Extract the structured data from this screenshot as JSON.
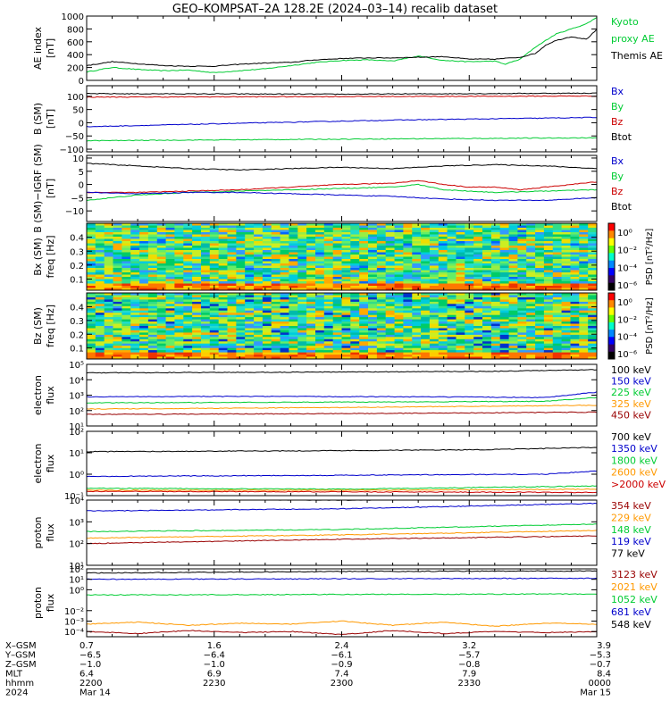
{
  "title": "GEO–KOMPSAT–2A 128.2E (2024–03–14) recalib dataset",
  "colors": {
    "black": "#000000",
    "blue": "#0000cc",
    "green": "#00cc33",
    "red": "#cc0000",
    "orange": "#ff9900",
    "darkred": "#990000"
  },
  "chart_data": [
    {
      "id": "ae",
      "type": "line",
      "ylabel": [
        "AE index",
        "[nT]"
      ],
      "ylim": [
        0,
        1000
      ],
      "ytick_values": [
        0,
        200,
        400,
        600,
        800,
        1000
      ],
      "ytick_labels": [
        "0",
        "200",
        "400",
        "600",
        "800",
        "1000"
      ],
      "legend": [
        {
          "text": "Kyoto",
          "color": "green"
        },
        {
          "text": "proxy AE",
          "color": "green"
        },
        {
          "text": "Themis AE",
          "color": "black"
        }
      ],
      "series": [
        {
          "name": "Kyoto proxy AE",
          "color": "green",
          "x": [
            0,
            0.05,
            0.1,
            0.15,
            0.2,
            0.25,
            0.3,
            0.35,
            0.4,
            0.45,
            0.5,
            0.55,
            0.6,
            0.65,
            0.7,
            0.75,
            0.8,
            0.82,
            0.85,
            0.88,
            0.9,
            0.92,
            0.95,
            0.98,
            1.0
          ],
          "y": [
            130,
            200,
            170,
            150,
            160,
            120,
            150,
            180,
            230,
            280,
            310,
            320,
            300,
            380,
            310,
            290,
            300,
            250,
            330,
            520,
            620,
            720,
            800,
            880,
            980
          ]
        },
        {
          "name": "Themis AE",
          "color": "black",
          "x": [
            0,
            0.05,
            0.1,
            0.15,
            0.2,
            0.25,
            0.3,
            0.35,
            0.4,
            0.45,
            0.5,
            0.55,
            0.6,
            0.65,
            0.7,
            0.75,
            0.8,
            0.85,
            0.88,
            0.9,
            0.92,
            0.95,
            0.98,
            1.0
          ],
          "y": [
            230,
            290,
            260,
            230,
            220,
            220,
            250,
            270,
            280,
            320,
            340,
            350,
            350,
            360,
            370,
            330,
            330,
            360,
            420,
            550,
            620,
            680,
            640,
            790
          ]
        }
      ]
    },
    {
      "id": "bsm",
      "type": "line",
      "ylabel": [
        "B (SM)",
        "[nT]"
      ],
      "ylim": [
        -110,
        140
      ],
      "ytick_values": [
        -100,
        -50,
        0,
        50,
        100
      ],
      "ytick_labels": [
        "−100",
        "−50",
        "0",
        "50",
        "100"
      ],
      "legend": [
        {
          "text": "Bx",
          "color": "blue"
        },
        {
          "text": "By",
          "color": "green"
        },
        {
          "text": "Bz",
          "color": "red"
        },
        {
          "text": "Btot",
          "color": "black"
        }
      ],
      "series": [
        {
          "name": "Btot",
          "color": "black",
          "x": [
            0,
            0.5,
            1
          ],
          "y": [
            110,
            108,
            112
          ]
        },
        {
          "name": "Bz",
          "color": "red",
          "x": [
            0,
            0.5,
            1
          ],
          "y": [
            97,
            99,
            101
          ]
        },
        {
          "name": "Bx",
          "color": "blue",
          "x": [
            0,
            0.3,
            0.6,
            1
          ],
          "y": [
            -15,
            -2,
            10,
            20
          ]
        },
        {
          "name": "By",
          "color": "green",
          "x": [
            0,
            0.5,
            1
          ],
          "y": [
            -68,
            -62,
            -57
          ]
        }
      ]
    },
    {
      "id": "bdiff",
      "type": "line",
      "ylabel": [
        "B (SM)−IGRF (SM)",
        "[nT]"
      ],
      "ylim": [
        -14,
        11
      ],
      "ytick_values": [
        -10,
        -5,
        0,
        5,
        10
      ],
      "ytick_labels": [
        "−10",
        "−5",
        "0",
        "5",
        "10"
      ],
      "legend": [
        {
          "text": "Bx",
          "color": "blue"
        },
        {
          "text": "By",
          "color": "green"
        },
        {
          "text": "Bz",
          "color": "red"
        },
        {
          "text": "Btot",
          "color": "black"
        }
      ],
      "series": [
        {
          "name": "Btot",
          "color": "black",
          "x": [
            0,
            0.1,
            0.2,
            0.3,
            0.4,
            0.5,
            0.6,
            0.7,
            0.8,
            0.9,
            1
          ],
          "y": [
            8,
            7,
            6,
            5.5,
            6,
            6.5,
            6,
            7,
            7.5,
            7,
            6
          ]
        },
        {
          "name": "Bz",
          "color": "red",
          "x": [
            0,
            0.1,
            0.2,
            0.3,
            0.4,
            0.5,
            0.6,
            0.65,
            0.7,
            0.75,
            0.8,
            0.85,
            0.9,
            0.95,
            1
          ],
          "y": [
            -3,
            -3,
            -2.5,
            -2,
            -1,
            0,
            0.5,
            1.5,
            0,
            -1,
            -1,
            -2,
            -1,
            0,
            1
          ]
        },
        {
          "name": "By",
          "color": "green",
          "x": [
            0,
            0.1,
            0.2,
            0.3,
            0.4,
            0.5,
            0.6,
            0.65,
            0.7,
            0.8,
            0.9,
            1
          ],
          "y": [
            -6,
            -4,
            -3,
            -2.5,
            -2,
            -1.5,
            -1,
            0,
            -2,
            -3,
            -2.5,
            -2
          ]
        },
        {
          "name": "Bx",
          "color": "blue",
          "x": [
            0,
            0.1,
            0.2,
            0.3,
            0.4,
            0.5,
            0.6,
            0.7,
            0.8,
            0.9,
            1
          ],
          "y": [
            -3,
            -3.5,
            -3,
            -3,
            -3.5,
            -4,
            -4.5,
            -5.5,
            -6,
            -6,
            -5
          ]
        }
      ]
    },
    {
      "id": "bxspec",
      "type": "heatmap",
      "ylabel": [
        "Bx (SM)",
        "freq [Hz]"
      ],
      "ylim": [
        0.02,
        0.5
      ],
      "ytick_values": [
        0.1,
        0.2,
        0.3,
        0.4
      ],
      "ytick_labels": [
        "0.1",
        "0.2",
        "0.3",
        "0.4"
      ],
      "colorbar": {
        "label": "PSD [nT²/Hz]",
        "ticks": [
          "10⁰",
          "10⁻²",
          "10⁻⁴",
          "10⁻⁶"
        ]
      }
    },
    {
      "id": "bzspec",
      "type": "heatmap",
      "ylabel": [
        "Bz (SM)",
        "freq [Hz]"
      ],
      "ylim": [
        0.02,
        0.5
      ],
      "ytick_values": [
        0.1,
        0.2,
        0.3,
        0.4
      ],
      "ytick_labels": [
        "0.1",
        "0.2",
        "0.3",
        "0.4"
      ],
      "colorbar": {
        "label": "PSD [nT²/Hz]",
        "ticks": [
          "10⁰",
          "10⁻²",
          "10⁻⁴",
          "10⁻⁶"
        ]
      }
    },
    {
      "id": "eflux1",
      "type": "line",
      "log": true,
      "ylabel": [
        "electron",
        "flux"
      ],
      "ylim_log": [
        1,
        5
      ],
      "ytick_values": [
        1,
        2,
        3,
        4,
        5
      ],
      "ytick_labels": [
        "10¹",
        "10²",
        "10³",
        "10⁴",
        "10⁵"
      ],
      "legend": [
        {
          "text": "100 keV",
          "color": "black"
        },
        {
          "text": "150 keV",
          "color": "blue"
        },
        {
          "text": "225 keV",
          "color": "green"
        },
        {
          "text": "325 keV",
          "color": "orange"
        },
        {
          "text": "450 keV",
          "color": "darkred"
        }
      ],
      "series": [
        {
          "name": "100 keV",
          "color": "black",
          "x": [
            0,
            0.5,
            0.8,
            1
          ],
          "y": [
            4.45,
            4.5,
            4.55,
            4.65
          ]
        },
        {
          "name": "150 keV",
          "color": "blue",
          "x": [
            0,
            0.3,
            0.6,
            0.9,
            1
          ],
          "y": [
            2.9,
            2.92,
            2.9,
            2.85,
            3.2
          ]
        },
        {
          "name": "225 keV",
          "color": "green",
          "x": [
            0,
            0.5,
            0.9,
            1
          ],
          "y": [
            2.5,
            2.55,
            2.6,
            2.85
          ]
        },
        {
          "name": "325 keV",
          "color": "orange",
          "x": [
            0,
            0.5,
            1
          ],
          "y": [
            2.1,
            2.2,
            2.35
          ]
        },
        {
          "name": "450 keV",
          "color": "darkred",
          "x": [
            0,
            0.5,
            1
          ],
          "y": [
            1.75,
            1.8,
            1.9
          ]
        }
      ]
    },
    {
      "id": "eflux2",
      "type": "line",
      "log": true,
      "ylabel": [
        "electron",
        "flux"
      ],
      "ylim_log": [
        -1,
        2
      ],
      "ytick_values": [
        -1,
        0,
        1,
        2
      ],
      "ytick_labels": [
        "10⁻¹",
        "10⁰",
        "10¹",
        "10²"
      ],
      "legend": [
        {
          "text": "700 keV",
          "color": "black"
        },
        {
          "text": "1350 keV",
          "color": "blue"
        },
        {
          "text": "1800 keV",
          "color": "green"
        },
        {
          "text": "2600 keV",
          "color": "orange"
        },
        {
          "text": ">2000 keV",
          "color": "red"
        }
      ],
      "series": [
        {
          "name": "700 keV",
          "color": "black",
          "x": [
            0,
            0.5,
            0.8,
            1
          ],
          "y": [
            1.05,
            1.1,
            1.15,
            1.25
          ]
        },
        {
          "name": "1350 keV",
          "color": "blue",
          "x": [
            0,
            0.5,
            0.9,
            1
          ],
          "y": [
            -0.1,
            -0.05,
            0,
            0.15
          ]
        },
        {
          "name": "1800 keV",
          "color": "green",
          "x": [
            0,
            0.5,
            1
          ],
          "y": [
            -0.65,
            -0.7,
            -0.55
          ]
        },
        {
          "name": "2600 keV",
          "color": "orange",
          "x": [
            0,
            0.5,
            1
          ],
          "y": [
            -0.75,
            -0.75,
            -0.7
          ]
        },
        {
          "name": ">2000 keV",
          "color": "red",
          "x": [
            0,
            0.5,
            1
          ],
          "y": [
            -0.8,
            -0.82,
            -0.85
          ]
        }
      ]
    },
    {
      "id": "pflux1",
      "type": "line",
      "log": true,
      "ylabel": [
        "proton",
        "flux"
      ],
      "ylim_log": [
        1,
        4
      ],
      "ytick_values": [
        1,
        2,
        3,
        4
      ],
      "ytick_labels": [
        "10¹",
        "10²",
        "10³",
        "10⁴"
      ],
      "legend": [
        {
          "text": "354 keV",
          "color": "darkred"
        },
        {
          "text": "229 keV",
          "color": "orange"
        },
        {
          "text": "148 keV",
          "color": "green"
        },
        {
          "text": "119 keV",
          "color": "blue"
        },
        {
          "text": "77 keV",
          "color": "black"
        }
      ],
      "series": [
        {
          "name": "77 keV",
          "color": "black",
          "x": [
            0,
            0.5,
            1
          ],
          "y": [
            4.05,
            4.0,
            4.05
          ]
        },
        {
          "name": "119 keV",
          "color": "blue",
          "x": [
            0,
            0.5,
            1
          ],
          "y": [
            3.5,
            3.6,
            3.85
          ]
        },
        {
          "name": "148 keV",
          "color": "green",
          "x": [
            0,
            0.5,
            1
          ],
          "y": [
            2.55,
            2.65,
            2.9
          ]
        },
        {
          "name": "229 keV",
          "color": "orange",
          "x": [
            0,
            0.5,
            1
          ],
          "y": [
            2.25,
            2.4,
            2.6
          ]
        },
        {
          "name": "354 keV",
          "color": "darkred",
          "x": [
            0,
            0.5,
            1
          ],
          "y": [
            2.0,
            2.2,
            2.35
          ]
        }
      ]
    },
    {
      "id": "pflux2",
      "type": "line",
      "log": true,
      "ylabel": [
        "proton",
        "flux"
      ],
      "ylim_log": [
        -4.5,
        2
      ],
      "ytick_values": [
        -4,
        -3,
        -2,
        0,
        1,
        2
      ],
      "ytick_labels": [
        "10⁻⁴",
        "10⁻³",
        "10⁻²",
        "10⁰",
        "10¹",
        "10²"
      ],
      "legend": [
        {
          "text": "3123 keV",
          "color": "darkred"
        },
        {
          "text": "2021 keV",
          "color": "orange"
        },
        {
          "text": "1052 keV",
          "color": "green"
        },
        {
          "text": "681 keV",
          "color": "blue"
        },
        {
          "text": "548 keV",
          "color": "black"
        }
      ],
      "series": [
        {
          "name": "548 keV",
          "color": "black",
          "x": [
            0,
            0.5,
            1
          ],
          "y": [
            1.6,
            1.75,
            1.8
          ]
        },
        {
          "name": "681 keV",
          "color": "blue",
          "x": [
            0,
            0.5,
            1
          ],
          "y": [
            1.0,
            1.05,
            1.1
          ]
        },
        {
          "name": "1052 keV",
          "color": "green",
          "x": [
            0,
            0.5,
            1
          ],
          "y": [
            -0.5,
            -0.45,
            -0.4
          ]
        },
        {
          "name": "2021 keV",
          "color": "orange",
          "x": [
            0,
            0.1,
            0.2,
            0.3,
            0.4,
            0.5,
            0.6,
            0.7,
            0.8,
            0.9,
            1
          ],
          "y": [
            -3.3,
            -3.1,
            -3.4,
            -3.2,
            -3.3,
            -3.0,
            -3.4,
            -3.1,
            -3.5,
            -3.2,
            -3.3
          ]
        },
        {
          "name": "3123 keV",
          "color": "darkred",
          "x": [
            0,
            0.1,
            0.2,
            0.3,
            0.4,
            0.5,
            0.6,
            0.7,
            0.8,
            0.9,
            1
          ],
          "y": [
            -4.0,
            -4.2,
            -3.9,
            -4.1,
            -4.0,
            -4.3,
            -3.9,
            -4.2,
            -4.0,
            -4.1,
            -4.0
          ]
        }
      ]
    }
  ],
  "xaxis": {
    "row_labels": [
      "X–GSM",
      "Y–GSM",
      "Z–GSM",
      "MLT",
      "hhmm",
      "2024"
    ],
    "columns": [
      {
        "pos": 0.0,
        "vals": [
          "0.7",
          "−6.5",
          "−1.0",
          "6.4",
          "2200",
          "Mar 14"
        ]
      },
      {
        "pos": 0.25,
        "vals": [
          "1.6",
          "−6.4",
          "−1.0",
          "6.9",
          "2230",
          ""
        ]
      },
      {
        "pos": 0.5,
        "vals": [
          "2.4",
          "−6.1",
          "−0.9",
          "7.4",
          "2300",
          ""
        ]
      },
      {
        "pos": 0.75,
        "vals": [
          "3.2",
          "−5.7",
          "−0.8",
          "7.9",
          "2330",
          ""
        ]
      },
      {
        "pos": 1.0,
        "vals": [
          "3.9",
          "−5.3",
          "−0.7",
          "8.4",
          "0000",
          "Mar 15"
        ]
      }
    ]
  }
}
